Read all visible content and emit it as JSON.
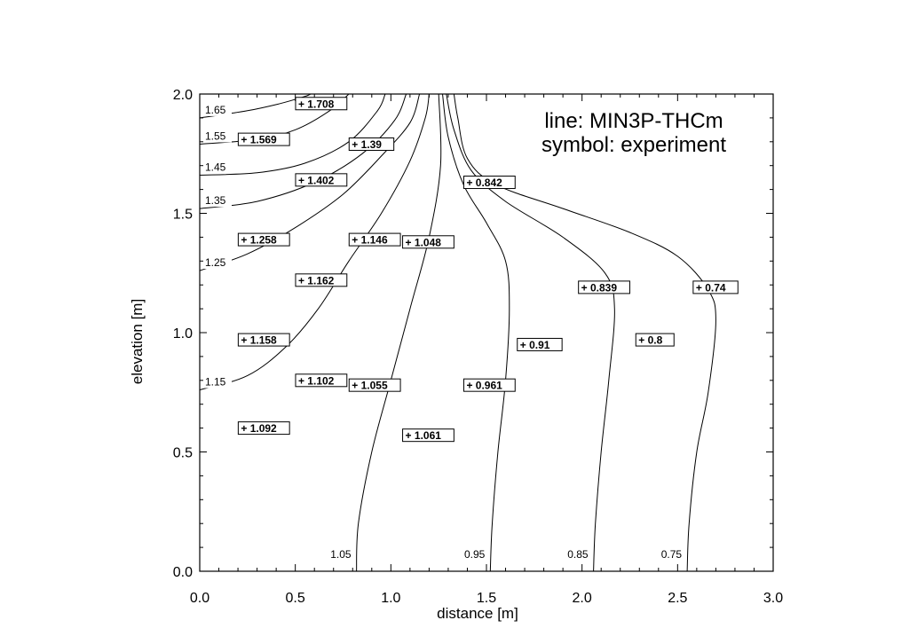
{
  "chart_data": {
    "type": "contour",
    "xlabel": "distance [m]",
    "ylabel": "elevation [m]",
    "xlim": [
      0.0,
      3.0
    ],
    "ylim": [
      0.0,
      2.0
    ],
    "xticks": [
      "0.0",
      "0.5",
      "1.0",
      "1.5",
      "2.0",
      "2.5",
      "3.0"
    ],
    "yticks": [
      "0.0",
      "0.5",
      "1.0",
      "1.5",
      "2.0"
    ],
    "legend": [
      "line: MIN3P-THCm",
      "symbol: experiment"
    ],
    "contours": [
      {
        "level": "1.65",
        "points": [
          [
            0.0,
            1.9
          ],
          [
            0.25,
            1.93
          ],
          [
            0.42,
            1.96
          ],
          [
            0.55,
            1.99
          ],
          [
            0.58,
            2.0
          ]
        ]
      },
      {
        "level": "1.55",
        "points": [
          [
            0.0,
            1.79
          ],
          [
            0.3,
            1.81
          ],
          [
            0.5,
            1.85
          ],
          [
            0.68,
            1.93
          ],
          [
            0.78,
            2.0
          ]
        ]
      },
      {
        "level": "1.45",
        "points": [
          [
            0.0,
            1.66
          ],
          [
            0.3,
            1.67
          ],
          [
            0.55,
            1.71
          ],
          [
            0.78,
            1.8
          ],
          [
            0.93,
            1.93
          ],
          [
            0.97,
            2.0
          ]
        ]
      },
      {
        "level": "1.35",
        "points": [
          [
            0.0,
            1.52
          ],
          [
            0.3,
            1.55
          ],
          [
            0.6,
            1.63
          ],
          [
            0.85,
            1.75
          ],
          [
            1.02,
            1.89
          ],
          [
            1.08,
            2.0
          ]
        ]
      },
      {
        "level": "1.25",
        "points": [
          [
            0.0,
            1.26
          ],
          [
            0.25,
            1.33
          ],
          [
            0.5,
            1.44
          ],
          [
            0.75,
            1.58
          ],
          [
            0.95,
            1.74
          ],
          [
            1.1,
            1.88
          ],
          [
            1.15,
            2.0
          ]
        ]
      },
      {
        "level": "1.15",
        "points": [
          [
            0.0,
            0.76
          ],
          [
            0.25,
            0.82
          ],
          [
            0.45,
            0.94
          ],
          [
            0.62,
            1.1
          ],
          [
            0.78,
            1.3
          ],
          [
            0.95,
            1.5
          ],
          [
            1.1,
            1.72
          ],
          [
            1.18,
            1.9
          ],
          [
            1.2,
            2.0
          ]
        ]
      },
      {
        "level": "1.05",
        "points": [
          [
            0.82,
            0.0
          ],
          [
            0.83,
            0.2
          ],
          [
            0.9,
            0.5
          ],
          [
            1.0,
            0.8
          ],
          [
            1.1,
            1.1
          ],
          [
            1.2,
            1.4
          ],
          [
            1.26,
            1.7
          ],
          [
            1.25,
            2.0
          ]
        ]
      },
      {
        "level": "0.95",
        "points": [
          [
            1.52,
            0.0
          ],
          [
            1.53,
            0.2
          ],
          [
            1.56,
            0.5
          ],
          [
            1.6,
            0.8
          ],
          [
            1.62,
            1.1
          ],
          [
            1.6,
            1.3
          ],
          [
            1.5,
            1.46
          ],
          [
            1.38,
            1.62
          ],
          [
            1.3,
            1.82
          ],
          [
            1.27,
            2.0
          ]
        ]
      },
      {
        "level": "0.85",
        "points": [
          [
            2.06,
            0.0
          ],
          [
            2.07,
            0.2
          ],
          [
            2.1,
            0.5
          ],
          [
            2.14,
            0.8
          ],
          [
            2.17,
            1.1
          ],
          [
            2.12,
            1.25
          ],
          [
            1.9,
            1.4
          ],
          [
            1.6,
            1.55
          ],
          [
            1.42,
            1.68
          ],
          [
            1.33,
            1.85
          ],
          [
            1.29,
            2.0
          ]
        ]
      },
      {
        "level": "0.75",
        "points": [
          [
            2.55,
            0.0
          ],
          [
            2.56,
            0.2
          ],
          [
            2.6,
            0.5
          ],
          [
            2.66,
            0.75
          ],
          [
            2.7,
            1.05
          ],
          [
            2.66,
            1.18
          ],
          [
            2.5,
            1.32
          ],
          [
            2.25,
            1.42
          ],
          [
            1.9,
            1.52
          ],
          [
            1.55,
            1.62
          ],
          [
            1.4,
            1.73
          ],
          [
            1.35,
            1.9
          ],
          [
            1.33,
            2.0
          ]
        ]
      }
    ],
    "observations": [
      {
        "x": 0.52,
        "y": 1.96,
        "label": "1.708"
      },
      {
        "x": 0.22,
        "y": 1.81,
        "label": "1.569"
      },
      {
        "x": 0.8,
        "y": 1.79,
        "label": "1.39"
      },
      {
        "x": 0.52,
        "y": 1.64,
        "label": "1.402"
      },
      {
        "x": 1.4,
        "y": 1.63,
        "label": "0.842"
      },
      {
        "x": 0.22,
        "y": 1.39,
        "label": "1.258"
      },
      {
        "x": 0.8,
        "y": 1.39,
        "label": "1.146"
      },
      {
        "x": 1.08,
        "y": 1.38,
        "label": "1.048"
      },
      {
        "x": 0.52,
        "y": 1.22,
        "label": "1.162"
      },
      {
        "x": 2.0,
        "y": 1.19,
        "label": "0.839"
      },
      {
        "x": 2.6,
        "y": 1.19,
        "label": "0.74"
      },
      {
        "x": 0.22,
        "y": 0.97,
        "label": "1.158"
      },
      {
        "x": 2.3,
        "y": 0.97,
        "label": "0.8"
      },
      {
        "x": 1.68,
        "y": 0.95,
        "label": "0.91"
      },
      {
        "x": 0.52,
        "y": 0.8,
        "label": "1.102"
      },
      {
        "x": 0.8,
        "y": 0.78,
        "label": "1.055"
      },
      {
        "x": 1.4,
        "y": 0.78,
        "label": "0.961"
      },
      {
        "x": 0.22,
        "y": 0.6,
        "label": "1.092"
      },
      {
        "x": 1.08,
        "y": 0.57,
        "label": "1.061"
      }
    ]
  }
}
